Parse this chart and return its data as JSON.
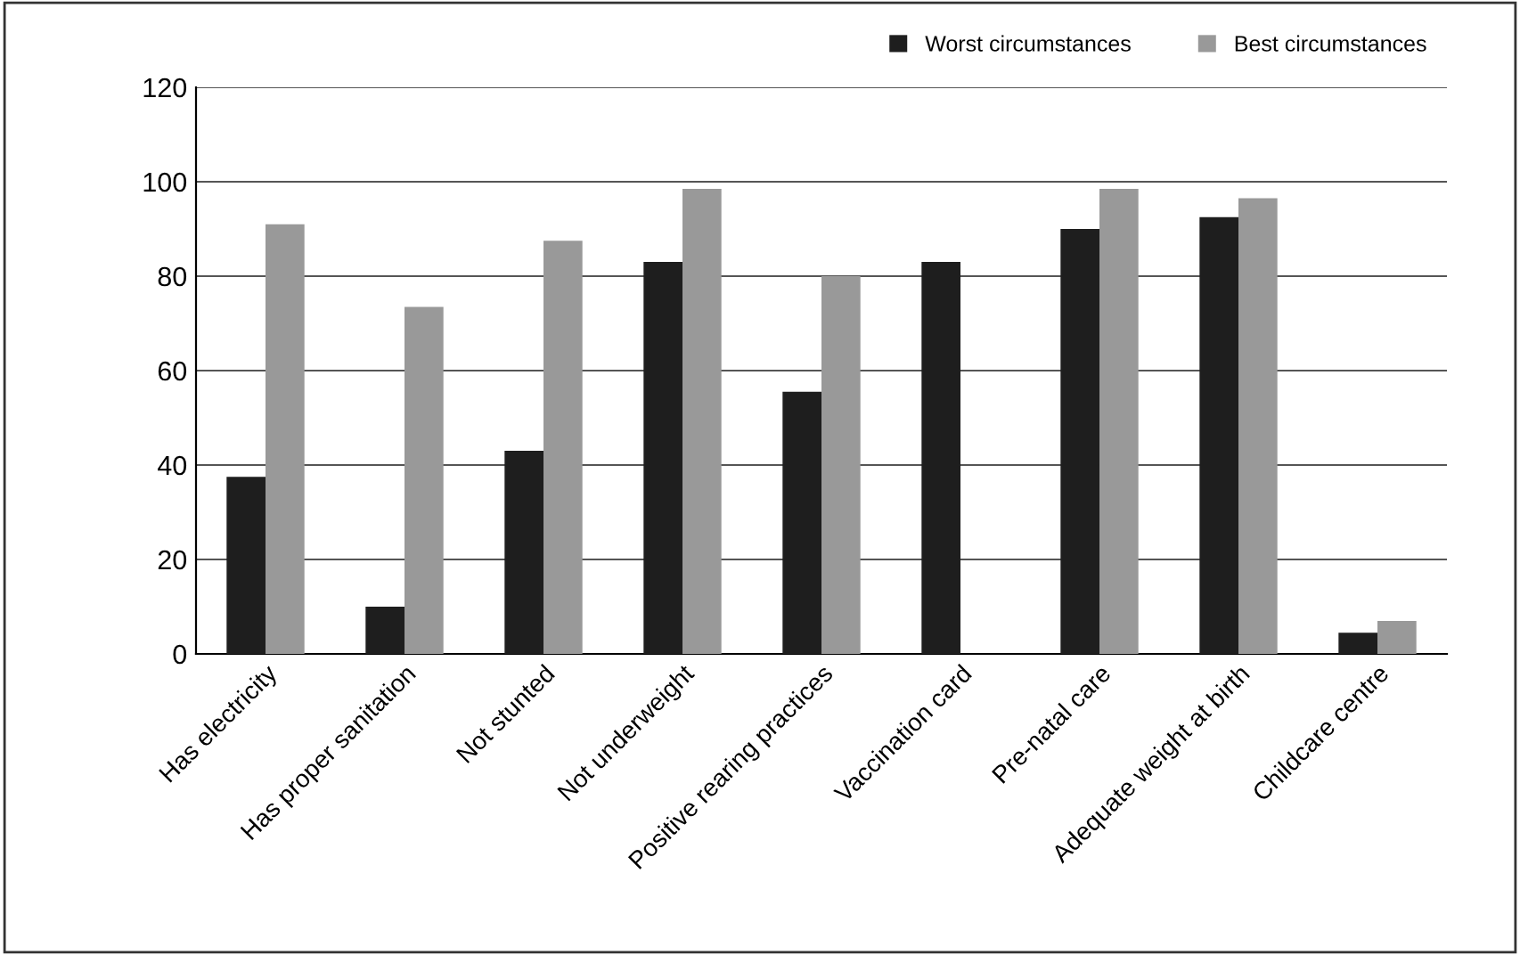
{
  "chart_data": {
    "type": "bar",
    "categories": [
      "Has electricity",
      "Has proper sanitation",
      "Not stunted",
      "Not underweight",
      "Positive rearing practices",
      "Vaccination card",
      "Pre-natal care",
      "Adequate weight at birth",
      "Childcare centre"
    ],
    "series": [
      {
        "name": "Worst circumstances",
        "color": "#1e1e1e",
        "values": [
          37.5,
          10,
          43,
          83,
          55.5,
          83,
          90,
          92.5,
          4.5
        ]
      },
      {
        "name": "Best circumstances",
        "color": "#999999",
        "values": [
          91,
          73.5,
          87.5,
          98.5,
          80,
          null,
          98.5,
          96.5,
          7
        ]
      }
    ],
    "ylim": [
      0,
      120
    ],
    "yticks": [
      0,
      20,
      40,
      60,
      80,
      100,
      120
    ],
    "grid": "y",
    "legend": "top right"
  }
}
